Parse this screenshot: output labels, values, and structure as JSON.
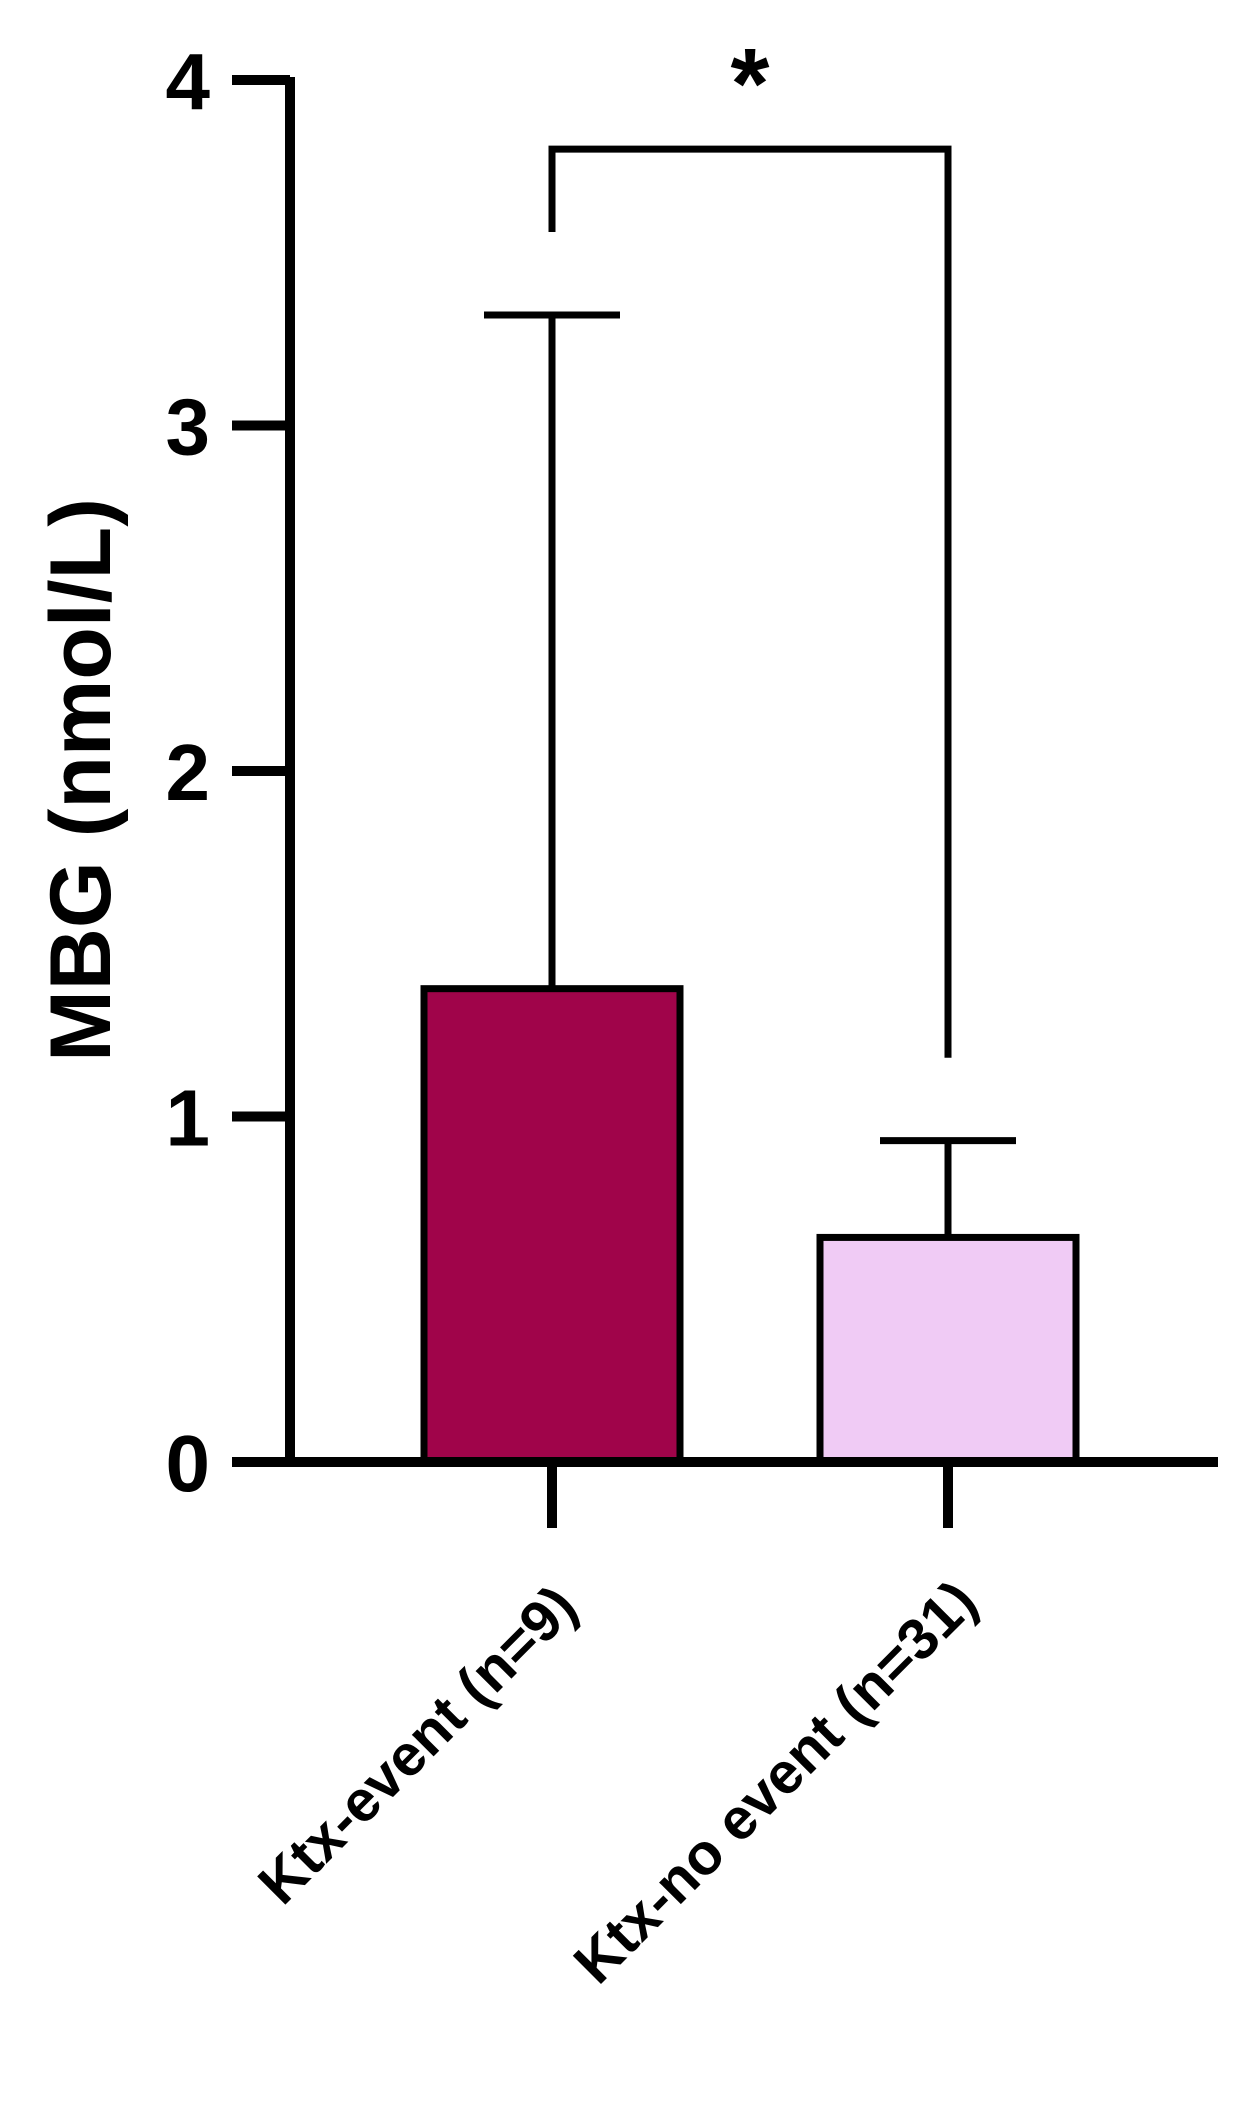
{
  "chart_data": {
    "type": "bar",
    "categories": [
      "Ktx-event (n=9)",
      "Ktx-no event (n=31)"
    ],
    "values": [
      1.37,
      0.65
    ],
    "error_upper": [
      3.32,
      0.93
    ],
    "colors": [
      "#a0044a",
      "#f0cbf5"
    ],
    "edge_color": "#000000",
    "title": "",
    "xlabel": "",
    "ylabel": "MBG (nmol/L)",
    "ylim": [
      0,
      4
    ],
    "yticks": [
      "0",
      "1",
      "2",
      "3",
      "4"
    ],
    "grid": false,
    "significance": {
      "label": "*",
      "left_drop_to": 3.56,
      "right_drop_to": 1.17,
      "bracket_y": 3.8
    }
  }
}
